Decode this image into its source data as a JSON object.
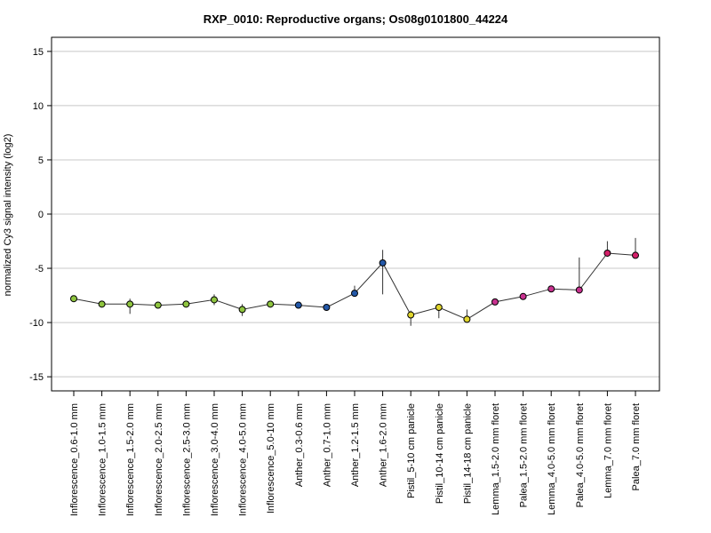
{
  "chart_data": {
    "type": "line",
    "title": "RXP_0010: Reproductive organs; Os08g0101800_44224",
    "xlabel": "",
    "ylabel": "normalized Cy3 signal intensity (log2)",
    "ylim": [
      -16.3,
      16.3
    ],
    "yticks": [
      -15,
      -10,
      -5,
      0,
      5,
      10,
      15
    ],
    "grid": true,
    "categories": [
      "Inflorescence_0.6-1.0 mm",
      "Inflorescence_1.0-1.5 mm",
      "Inflorescence_1.5-2.0 mm",
      "Inflorescence_2.0-2.5 mm",
      "Inflorescence_2.5-3.0 mm",
      "Inflorescence_3.0-4.0 mm",
      "Inflorescence_4.0-5.0 mm",
      "Inflorescence_5.0-10 mm",
      "Anther_0.3-0.6 mm",
      "Anther_0.7-1.0 mm",
      "Anther_1.2-1.5 mm",
      "Anther_1.6-2.0 mm",
      "Pistil_5-10 cm panicle",
      "Pistil_10-14 cm panicle",
      "Pistil_14-18 cm panicle",
      "Lemma_1.5-2.0 mm floret",
      "Palea_1.5-2.0 mm floret",
      "Lemma_4.0-5.0 mm floret",
      "Palea_4.0-5.0 mm floret",
      "Lemma_7.0 mm floret",
      "Palea_7.0 mm floret"
    ],
    "values": [
      -7.8,
      -8.3,
      -8.3,
      -8.4,
      -8.3,
      -7.9,
      -8.8,
      -8.3,
      -8.4,
      -8.6,
      -7.3,
      -4.5,
      -9.3,
      -8.6,
      -9.7,
      -8.1,
      -7.6,
      -6.9,
      -7.0,
      -3.6,
      -3.8
    ],
    "err_low": [
      -7.8,
      -8.3,
      -9.2,
      -8.4,
      -8.3,
      -8.4,
      -9.4,
      -8.3,
      -8.4,
      -8.6,
      -7.3,
      -7.4,
      -10.3,
      -9.6,
      -9.7,
      -8.1,
      -7.6,
      -6.9,
      -7.0,
      -3.6,
      -3.8
    ],
    "err_high": [
      -7.8,
      -8.3,
      -7.8,
      -8.4,
      -8.3,
      -7.4,
      -8.3,
      -8.3,
      -8.4,
      -8.6,
      -6.6,
      -3.3,
      -8.9,
      -8.3,
      -8.8,
      -7.8,
      -7.3,
      -6.9,
      -4.0,
      -2.5,
      -2.2
    ],
    "point_colors": [
      "#8fc53f",
      "#8fc53f",
      "#8fc53f",
      "#8fc53f",
      "#8fc53f",
      "#8fc53f",
      "#8fc53f",
      "#8fc53f",
      "#2358a8",
      "#2358a8",
      "#2358a8",
      "#2358a8",
      "#e0d52d",
      "#e0d52d",
      "#e0d52d",
      "#c8318f",
      "#c8318f",
      "#c8318f",
      "#c8318f",
      "#d4206a",
      "#d4206a"
    ]
  }
}
